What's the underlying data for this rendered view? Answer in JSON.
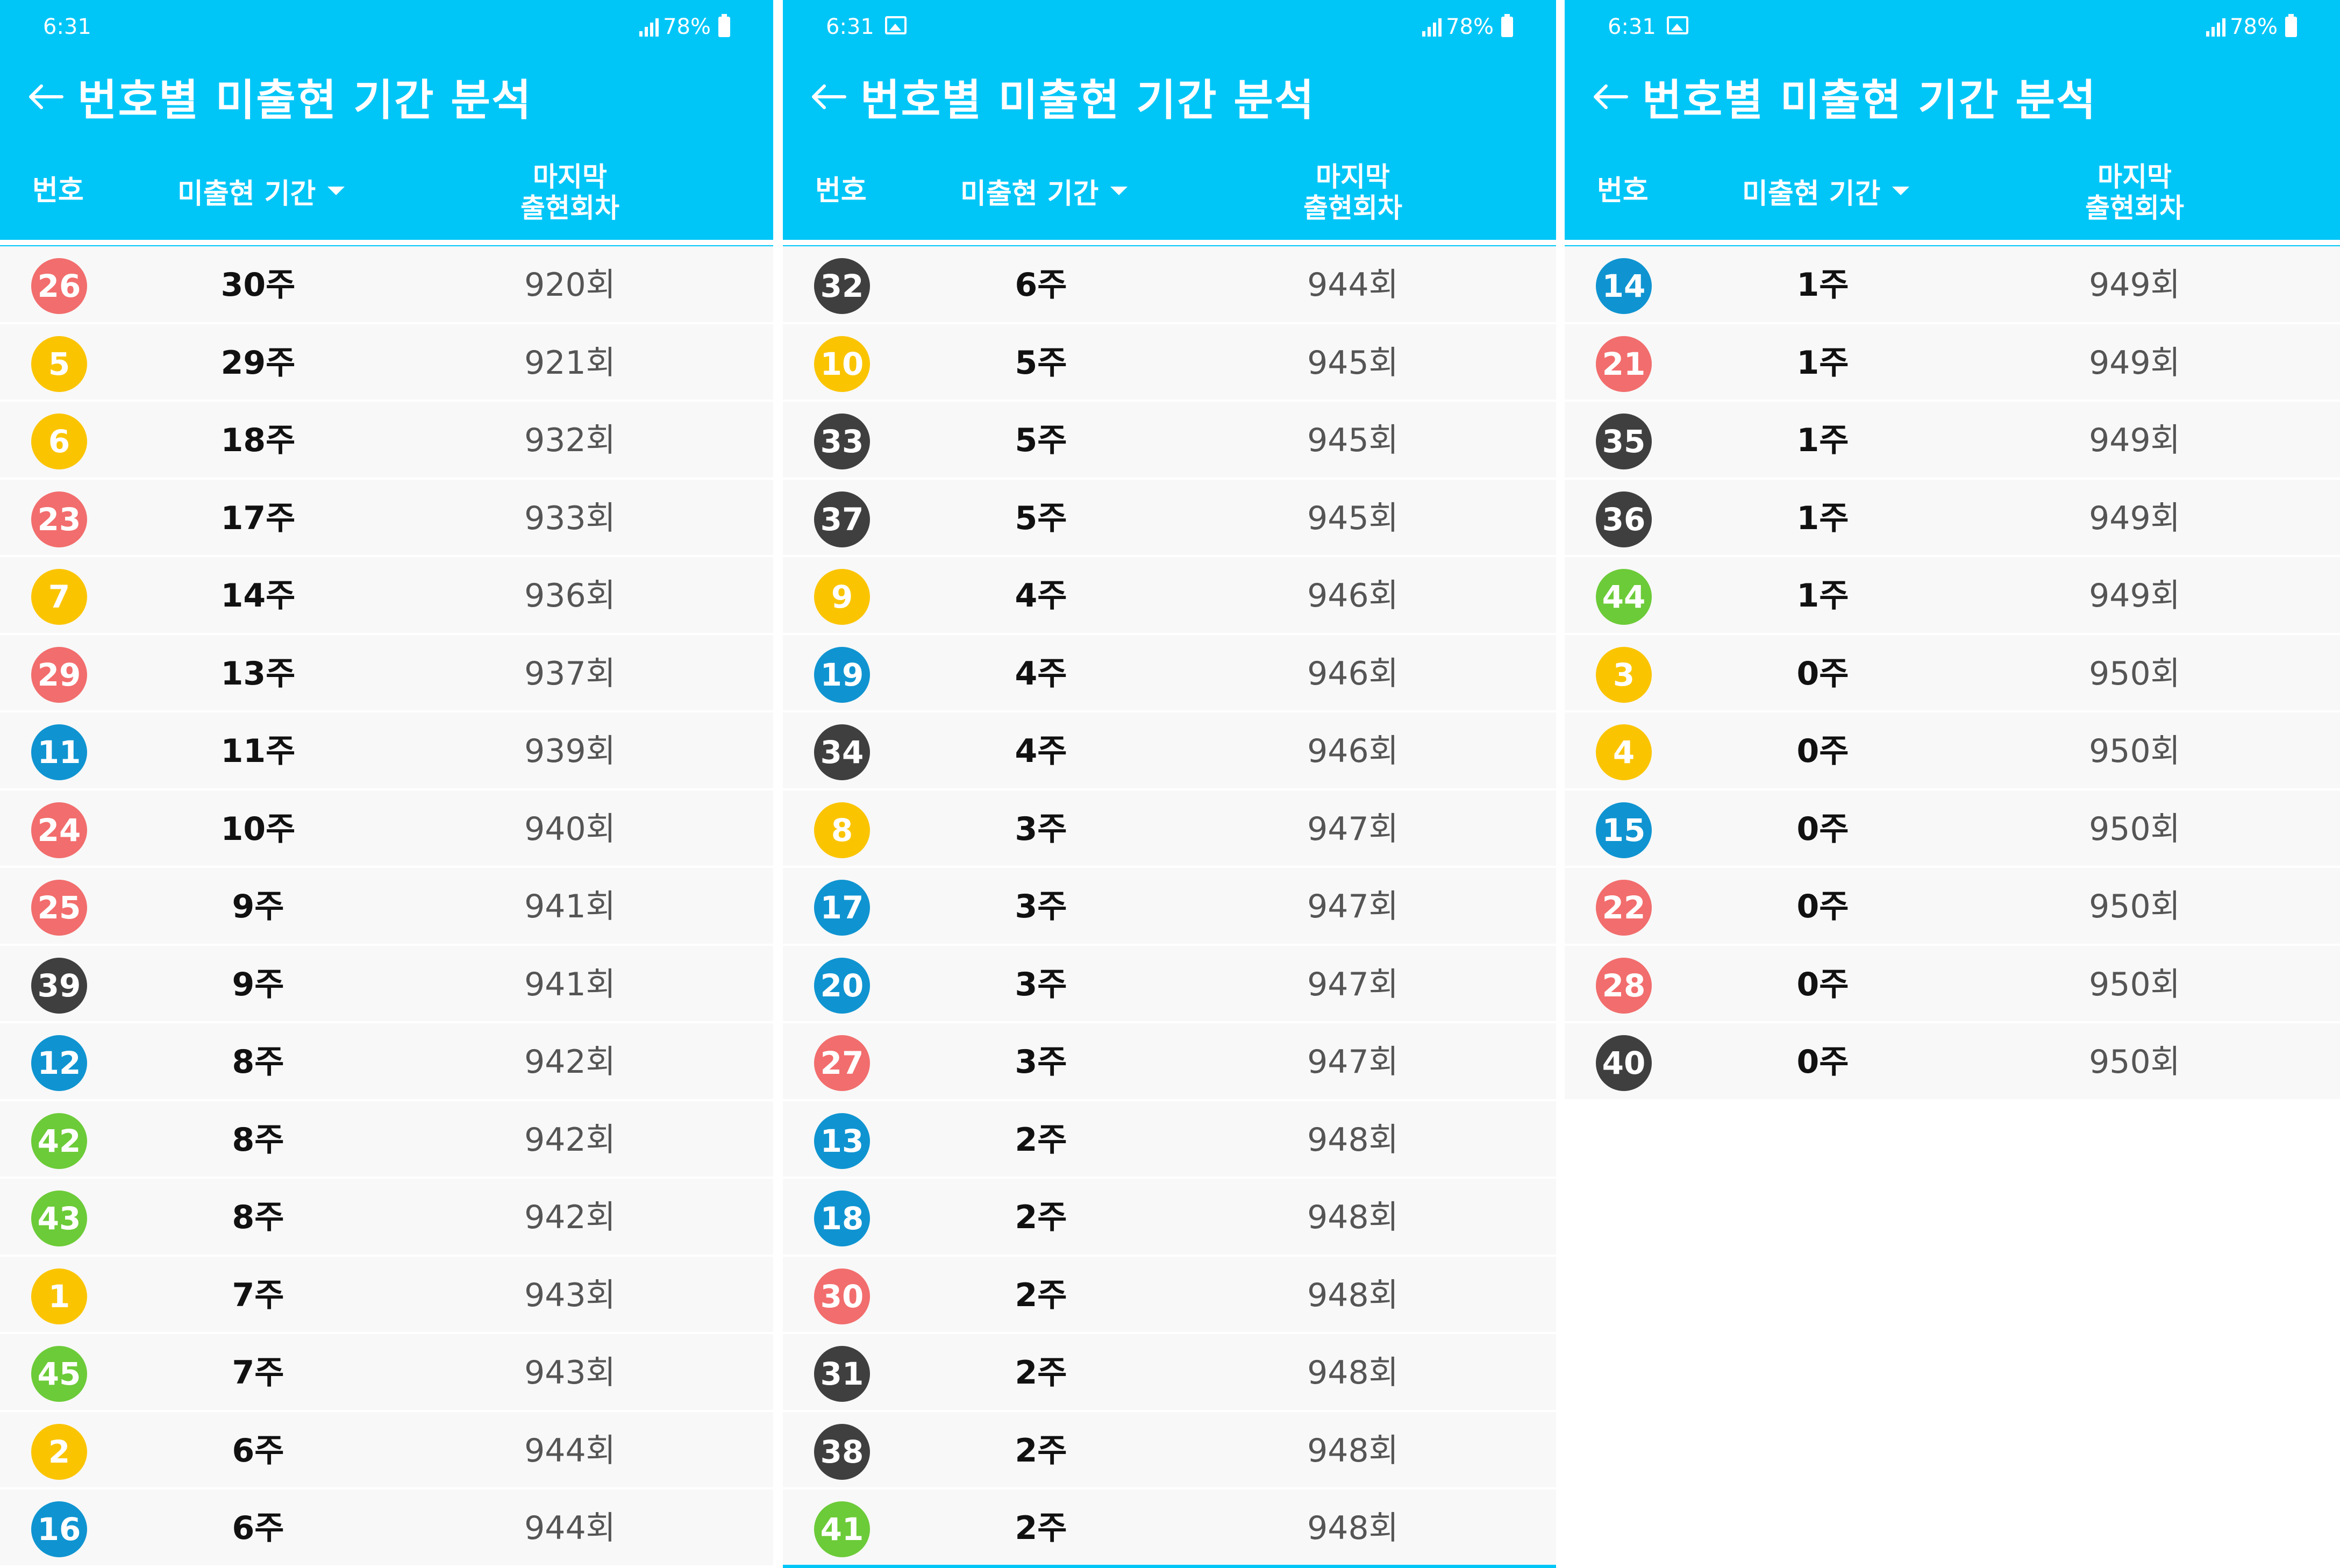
{
  "colors": {
    "appbar": "#00c6f8",
    "yellow": "#fbc400",
    "blue": "#0f94d1",
    "red": "#f26d6d",
    "gray": "#3f3f3f",
    "green": "#6ccb38"
  },
  "panels": [
    {
      "status": {
        "time": "6:31",
        "battery": "78%",
        "show_gallery_icon": false
      },
      "title": "번호별 미출현 기간 분석",
      "headers": {
        "number": "번호",
        "period": "미출현 기간",
        "last_line1": "마지막",
        "last_line2": "출현회차"
      },
      "rows": [
        {
          "num": "26",
          "color": "red",
          "weeks": "30주",
          "round": "920회"
        },
        {
          "num": "5",
          "color": "yellow",
          "weeks": "29주",
          "round": "921회"
        },
        {
          "num": "6",
          "color": "yellow",
          "weeks": "18주",
          "round": "932회"
        },
        {
          "num": "23",
          "color": "red",
          "weeks": "17주",
          "round": "933회"
        },
        {
          "num": "7",
          "color": "yellow",
          "weeks": "14주",
          "round": "936회"
        },
        {
          "num": "29",
          "color": "red",
          "weeks": "13주",
          "round": "937회"
        },
        {
          "num": "11",
          "color": "blue",
          "weeks": "11주",
          "round": "939회"
        },
        {
          "num": "24",
          "color": "red",
          "weeks": "10주",
          "round": "940회"
        },
        {
          "num": "25",
          "color": "red",
          "weeks": "9주",
          "round": "941회"
        },
        {
          "num": "39",
          "color": "gray",
          "weeks": "9주",
          "round": "941회"
        },
        {
          "num": "12",
          "color": "blue",
          "weeks": "8주",
          "round": "942회"
        },
        {
          "num": "42",
          "color": "green",
          "weeks": "8주",
          "round": "942회"
        },
        {
          "num": "43",
          "color": "green",
          "weeks": "8주",
          "round": "942회"
        },
        {
          "num": "1",
          "color": "yellow",
          "weeks": "7주",
          "round": "943회"
        },
        {
          "num": "45",
          "color": "green",
          "weeks": "7주",
          "round": "943회"
        },
        {
          "num": "2",
          "color": "yellow",
          "weeks": "6주",
          "round": "944회"
        },
        {
          "num": "16",
          "color": "blue",
          "weeks": "6주",
          "round": "944회"
        }
      ]
    },
    {
      "status": {
        "time": "6:31",
        "battery": "78%",
        "show_gallery_icon": true
      },
      "title": "번호별 미출현 기간 분석",
      "headers": {
        "number": "번호",
        "period": "미출현 기간",
        "last_line1": "마지막",
        "last_line2": "출현회차"
      },
      "rows": [
        {
          "num": "32",
          "color": "gray",
          "weeks": "6주",
          "round": "944회"
        },
        {
          "num": "10",
          "color": "yellow",
          "weeks": "5주",
          "round": "945회"
        },
        {
          "num": "33",
          "color": "gray",
          "weeks": "5주",
          "round": "945회"
        },
        {
          "num": "37",
          "color": "gray",
          "weeks": "5주",
          "round": "945회"
        },
        {
          "num": "9",
          "color": "yellow",
          "weeks": "4주",
          "round": "946회"
        },
        {
          "num": "19",
          "color": "blue",
          "weeks": "4주",
          "round": "946회"
        },
        {
          "num": "34",
          "color": "gray",
          "weeks": "4주",
          "round": "946회"
        },
        {
          "num": "8",
          "color": "yellow",
          "weeks": "3주",
          "round": "947회"
        },
        {
          "num": "17",
          "color": "blue",
          "weeks": "3주",
          "round": "947회"
        },
        {
          "num": "20",
          "color": "blue",
          "weeks": "3주",
          "round": "947회"
        },
        {
          "num": "27",
          "color": "red",
          "weeks": "3주",
          "round": "947회"
        },
        {
          "num": "13",
          "color": "blue",
          "weeks": "2주",
          "round": "948회"
        },
        {
          "num": "18",
          "color": "blue",
          "weeks": "2주",
          "round": "948회"
        },
        {
          "num": "30",
          "color": "red",
          "weeks": "2주",
          "round": "948회"
        },
        {
          "num": "31",
          "color": "gray",
          "weeks": "2주",
          "round": "948회"
        },
        {
          "num": "38",
          "color": "gray",
          "weeks": "2주",
          "round": "948회"
        },
        {
          "num": "41",
          "color": "green",
          "weeks": "2주",
          "round": "948회"
        }
      ]
    },
    {
      "status": {
        "time": "6:31",
        "battery": "78%",
        "show_gallery_icon": true
      },
      "title": "번호별 미출현 기간 분석",
      "headers": {
        "number": "번호",
        "period": "미출현 기간",
        "last_line1": "마지막",
        "last_line2": "출현회차"
      },
      "rows": [
        {
          "num": "14",
          "color": "blue",
          "weeks": "1주",
          "round": "949회"
        },
        {
          "num": "21",
          "color": "red",
          "weeks": "1주",
          "round": "949회"
        },
        {
          "num": "35",
          "color": "gray",
          "weeks": "1주",
          "round": "949회"
        },
        {
          "num": "36",
          "color": "gray",
          "weeks": "1주",
          "round": "949회"
        },
        {
          "num": "44",
          "color": "green",
          "weeks": "1주",
          "round": "949회"
        },
        {
          "num": "3",
          "color": "yellow",
          "weeks": "0주",
          "round": "950회"
        },
        {
          "num": "4",
          "color": "yellow",
          "weeks": "0주",
          "round": "950회"
        },
        {
          "num": "15",
          "color": "blue",
          "weeks": "0주",
          "round": "950회"
        },
        {
          "num": "22",
          "color": "red",
          "weeks": "0주",
          "round": "950회"
        },
        {
          "num": "28",
          "color": "red",
          "weeks": "0주",
          "round": "950회"
        },
        {
          "num": "40",
          "color": "gray",
          "weeks": "0주",
          "round": "950회"
        }
      ]
    }
  ]
}
